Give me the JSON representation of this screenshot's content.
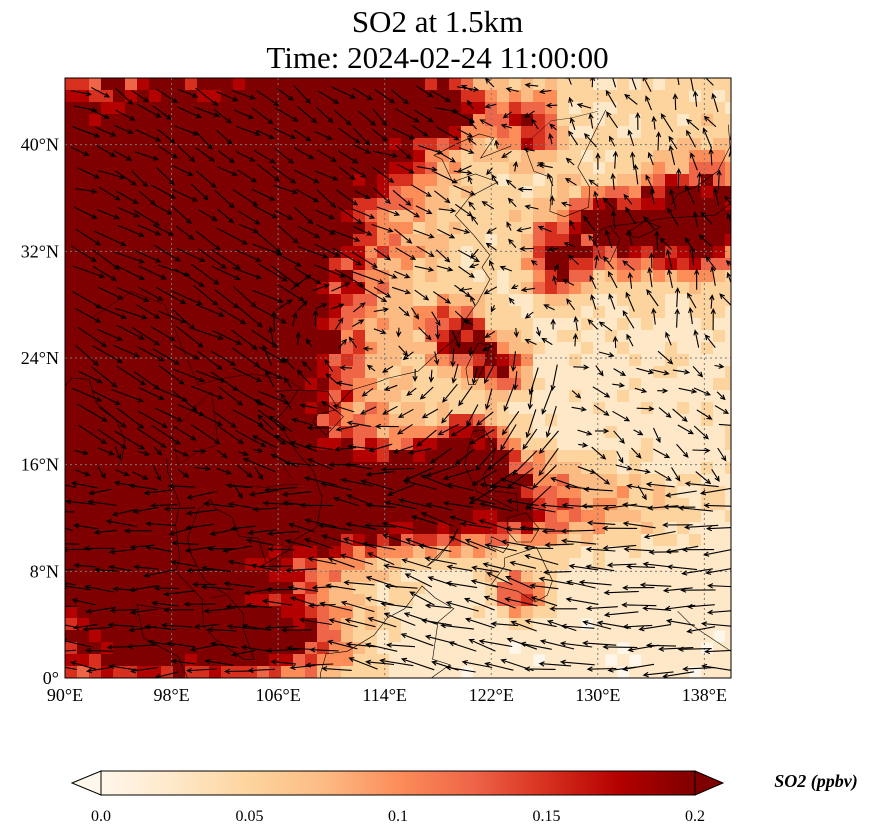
{
  "title": {
    "line1": "SO2 at 1.5km",
    "line2": "Time: 2024-02-24 11:00:00"
  },
  "map": {
    "extent": {
      "lon": [
        90,
        140
      ],
      "lat": [
        0,
        45
      ]
    },
    "lon_ticks": [
      {
        "value": 90,
        "label": "90°E"
      },
      {
        "value": 98,
        "label": "98°E"
      },
      {
        "value": 106,
        "label": "106°E"
      },
      {
        "value": 114,
        "label": "114°E"
      },
      {
        "value": 122,
        "label": "122°E"
      },
      {
        "value": 130,
        "label": "130°E"
      },
      {
        "value": 138,
        "label": "138°E"
      }
    ],
    "lat_ticks": [
      {
        "value": 0,
        "label": "0°"
      },
      {
        "value": 8,
        "label": "8°N"
      },
      {
        "value": 16,
        "label": "16°N"
      },
      {
        "value": 24,
        "label": "24°N"
      },
      {
        "value": 32,
        "label": "32°N"
      },
      {
        "value": 40,
        "label": "40°N"
      }
    ],
    "gridlines": "dotted",
    "field": "SO2 concentration with wind vectors"
  },
  "colorbar": {
    "title": "SO2 (ppbv)",
    "range": [
      0.0,
      0.2
    ],
    "extend": "both",
    "ticks": [
      {
        "value": 0.0,
        "label": "0.0"
      },
      {
        "value": 0.05,
        "label": "0.05"
      },
      {
        "value": 0.1,
        "label": "0.1"
      },
      {
        "value": 0.15,
        "label": "0.15"
      },
      {
        "value": 0.2,
        "label": "0.2"
      }
    ],
    "colors": [
      "#fff7ec",
      "#fee8c8",
      "#fdd49e",
      "#fdbb84",
      "#fc8d59",
      "#ef6548",
      "#d7301f",
      "#b30000",
      "#7f0000"
    ]
  }
}
